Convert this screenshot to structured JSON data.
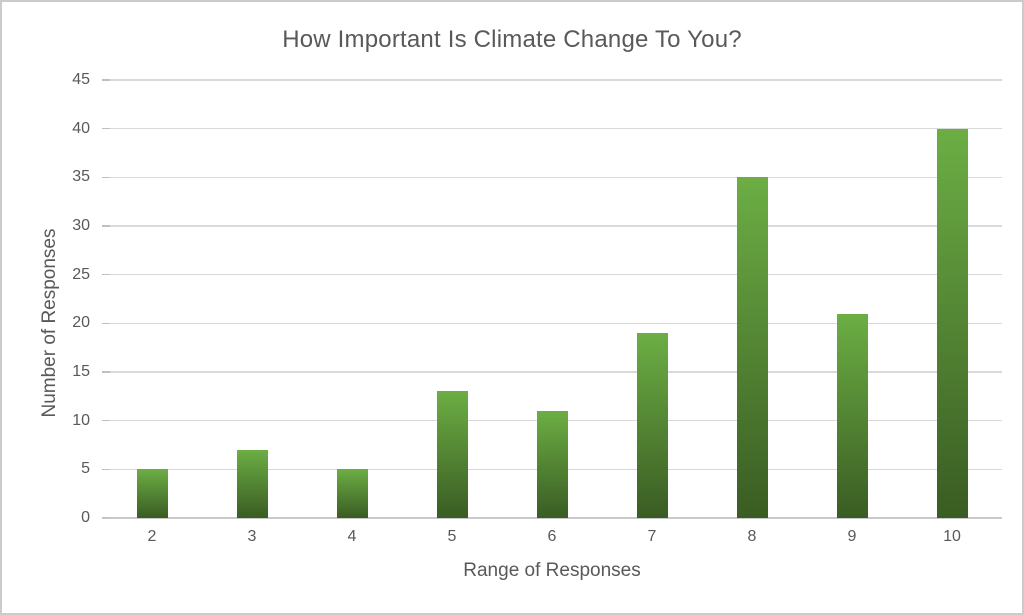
{
  "chart_data": {
    "type": "bar",
    "title": "How Important Is Climate Change To You?",
    "xlabel": "Range of Responses",
    "ylabel": "Number of Responses",
    "categories": [
      "2",
      "3",
      "4",
      "5",
      "6",
      "7",
      "8",
      "9",
      "10"
    ],
    "values": [
      5,
      7,
      5,
      13,
      11,
      19,
      35,
      21,
      40
    ],
    "ylim": [
      0,
      45
    ],
    "yticks": [
      0,
      5,
      10,
      15,
      20,
      25,
      30,
      35,
      40,
      45
    ],
    "grid": "horizontal",
    "legend": "none",
    "colors": {
      "bar_gradient_top": "#6cae44",
      "bar_gradient_bottom": "#3a5c23",
      "gridline": "#d9d9d9",
      "axis_baseline": "#c9c9c9",
      "text": "#595959",
      "background": "#ffffff",
      "frame_border": "#cbcbcb"
    }
  }
}
